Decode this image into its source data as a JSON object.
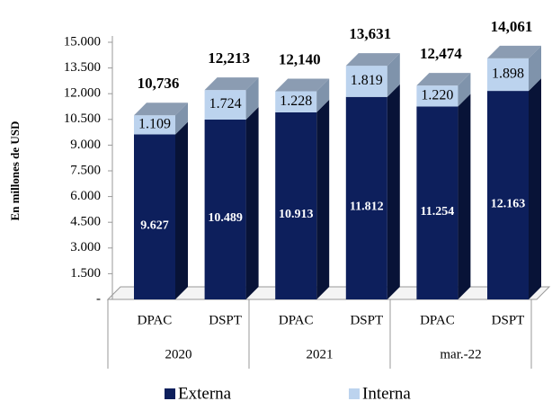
{
  "chart_data": {
    "type": "bar3d_stacked",
    "y_label": "En millones de USD",
    "categories": [
      "DPAC",
      "DSPT",
      "DPAC",
      "DSPT",
      "DPAC",
      "DSPT"
    ],
    "groups": [
      "2020",
      "2021",
      "mar.-22"
    ],
    "series": [
      {
        "name": "Externa",
        "color": "#0d1f5c",
        "values": [
          9627,
          10489,
          10913,
          11812,
          11254,
          12163
        ],
        "value_labels": [
          "9.627",
          "10.489",
          "10.913",
          "11.812",
          "11.254",
          "12.163"
        ]
      },
      {
        "name": "Interna",
        "color": "#bcd3ee",
        "values": [
          1109,
          1724,
          1228,
          1819,
          1220,
          1898
        ],
        "value_labels": [
          "1.109",
          "1.724",
          "1.228",
          "1.819",
          "1.220",
          "1.898"
        ]
      }
    ],
    "totals": [
      10736,
      12213,
      12140,
      13631,
      12474,
      14061
    ],
    "total_labels": [
      "10,736",
      "12,213",
      "12,140",
      "13,631",
      "12,474",
      "14,061"
    ],
    "ylim": [
      0,
      15000
    ],
    "yticks": [
      {
        "value": 0,
        "label": "-"
      },
      {
        "value": 1500,
        "label": "1.500"
      },
      {
        "value": 3000,
        "label": "3.000"
      },
      {
        "value": 4500,
        "label": "4.500"
      },
      {
        "value": 6000,
        "label": "6.000"
      },
      {
        "value": 7500,
        "label": "7.500"
      },
      {
        "value": 9000,
        "label": "9.000"
      },
      {
        "value": 10500,
        "label": "10.500"
      },
      {
        "value": 12000,
        "label": "12.000"
      },
      {
        "value": 13500,
        "label": "13.500"
      },
      {
        "value": 15000,
        "label": "15.000"
      }
    ],
    "legend": "bottom"
  }
}
